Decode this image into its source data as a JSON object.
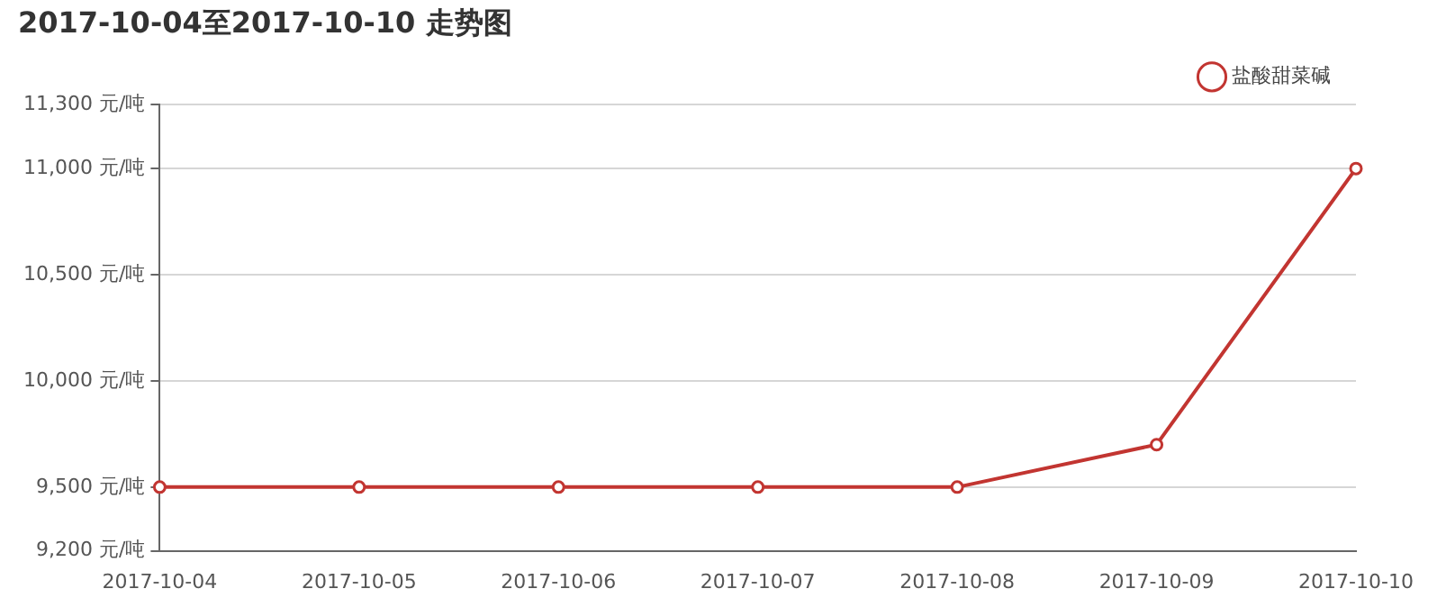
{
  "chart_data": {
    "type": "line",
    "title": "2017-10-04至2017-10-10 走势图",
    "categories": [
      "2017-10-04",
      "2017-10-05",
      "2017-10-06",
      "2017-10-07",
      "2017-10-08",
      "2017-10-09",
      "2017-10-10"
    ],
    "series": [
      {
        "name": "盐酸甜菜碱",
        "color": "#c23531",
        "values": [
          9500,
          9500,
          9500,
          9500,
          9500,
          9700,
          11000
        ]
      }
    ],
    "ylim": [
      9200,
      11300
    ],
    "yticks": [
      {
        "value": 9200,
        "label": "9,200 元/吨"
      },
      {
        "value": 9500,
        "label": "9,500 元/吨"
      },
      {
        "value": 10000,
        "label": "10,000 元/吨"
      },
      {
        "value": 10500,
        "label": "10,500 元/吨"
      },
      {
        "value": 11000,
        "label": "11,000 元/吨"
      },
      {
        "value": 11300,
        "label": "11,300 元/吨"
      }
    ],
    "grid": "y",
    "legend": "top right",
    "marker": "circle",
    "line_style": "solid"
  }
}
